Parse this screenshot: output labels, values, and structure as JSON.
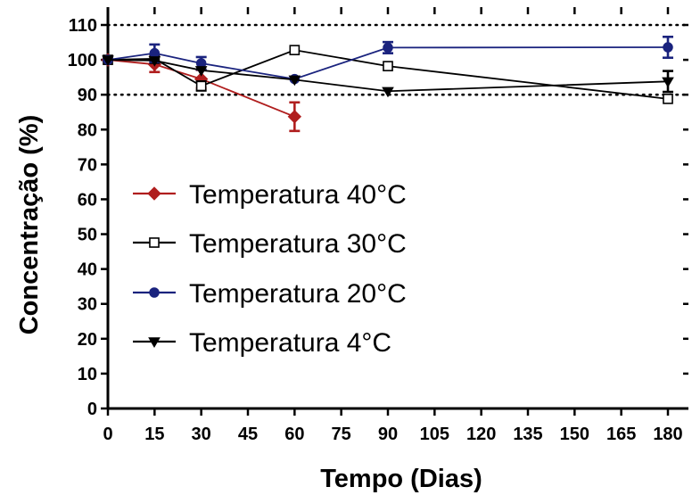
{
  "chart_data": {
    "type": "line",
    "xlabel": "Tempo (Dias)",
    "ylabel": "Concentração  (%)",
    "xlim": [
      0,
      180
    ],
    "ylim": [
      0,
      110
    ],
    "x_ticks": [
      "0",
      "15",
      "30",
      "45",
      "60",
      "75",
      "90",
      "105",
      "120",
      "135",
      "150",
      "165",
      "180"
    ],
    "y_ticks": [
      "0",
      "10",
      "20",
      "30",
      "40",
      "50",
      "60",
      "70",
      "80",
      "90",
      "100",
      "110"
    ],
    "reference_lines": [
      90,
      110
    ],
    "legend_position": "center-left",
    "series": [
      {
        "name": "Temperatura 40°C",
        "marker": "diamond",
        "filled": true,
        "color": "#b01e1e",
        "x": [
          0,
          15,
          30,
          60
        ],
        "y": [
          100,
          98.7,
          94.5,
          83.7
        ],
        "err": [
          0.5,
          2.2,
          2.6,
          4.1
        ]
      },
      {
        "name": "Temperatura 30°C",
        "marker": "square",
        "filled": false,
        "color": "#000000",
        "x": [
          0,
          15,
          30,
          60,
          90,
          180
        ],
        "y": [
          100,
          100.3,
          92.5,
          102.8,
          98.2,
          88.8
        ],
        "err": [
          0.5,
          0.6,
          1.3,
          0.6,
          0.6,
          0.8
        ]
      },
      {
        "name": "Temperatura 20°C",
        "marker": "circle",
        "filled": true,
        "color": "#1a237e",
        "x": [
          0,
          15,
          30,
          60,
          90,
          180
        ],
        "y": [
          100,
          101.9,
          99.0,
          94.5,
          103.5,
          103.6
        ],
        "err": [
          0.5,
          2.5,
          1.8,
          0.5,
          1.6,
          3.0
        ]
      },
      {
        "name": "Temperatura 4°C",
        "marker": "triangle-down",
        "filled": true,
        "color": "#000000",
        "x": [
          0,
          15,
          30,
          60,
          90,
          180
        ],
        "y": [
          100,
          99.8,
          97.0,
          94.3,
          91.0,
          93.8
        ],
        "err": [
          0.5,
          0.6,
          0.6,
          0.5,
          0.6,
          3.0
        ]
      }
    ]
  }
}
